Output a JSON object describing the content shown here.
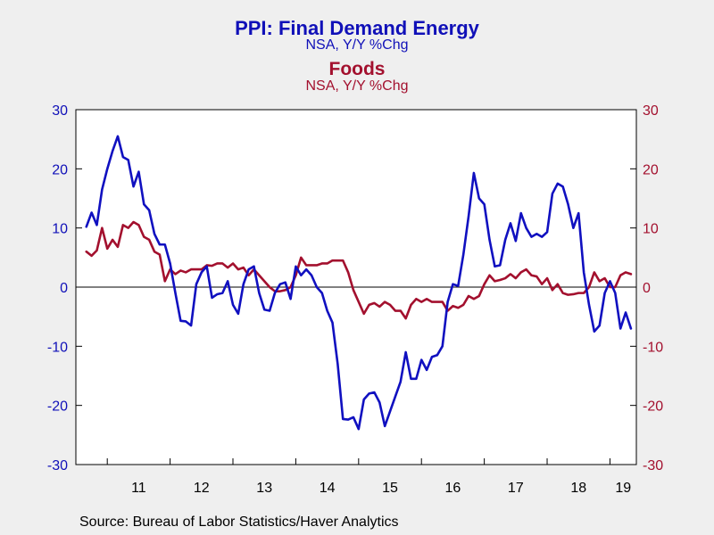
{
  "chart_data": {
    "type": "line",
    "title": "PPI: Final Demand Energy",
    "subtitle": "NSA, Y/Y %Chg",
    "title2": "Foods",
    "subtitle2": "NSA, Y/Y %Chg",
    "source": "Source:  Bureau of Labor Statistics/Haver Analytics",
    "ylim": [
      -30,
      30
    ],
    "yticks": [
      -30,
      -20,
      -10,
      0,
      10,
      20,
      30
    ],
    "left_tick_labels": [
      "30",
      "20",
      "10",
      "0",
      "-10",
      "-20",
      "-30"
    ],
    "right_tick_labels": [
      "30",
      "20",
      "10",
      "0",
      "-10",
      "-20",
      "-30"
    ],
    "x_labels": [
      "11",
      "12",
      "13",
      "14",
      "15",
      "16",
      "17",
      "18",
      "19"
    ],
    "xlim": [
      2010.5,
      2019.42
    ],
    "grid": false,
    "zero_line": true,
    "colors": {
      "energy": "#1010c0",
      "foods": "#a3102e",
      "left_axis_text": "#1010b8",
      "right_axis_text": "#a3102e"
    },
    "series": [
      {
        "name": "PPI: Final Demand Energy",
        "axis": "left",
        "start": 2010.667,
        "x_step_months": 1,
        "values": [
          10.2,
          12.6,
          10.5,
          16.5,
          20.0,
          23.0,
          25.5,
          22.0,
          21.5,
          17.0,
          19.5,
          14.0,
          13.0,
          9.0,
          7.2,
          7.2,
          4.0,
          -1.0,
          -5.7,
          -5.8,
          -6.5,
          0.5,
          2.5,
          3.5,
          -1.8,
          -1.2,
          -1.0,
          1.0,
          -3.0,
          -4.5,
          0.5,
          3.0,
          3.5,
          -1.0,
          -3.8,
          -4.0,
          -1.0,
          0.5,
          0.8,
          -2.0,
          3.5,
          2.0,
          3.0,
          2.0,
          0.0,
          -1.0,
          -4.0,
          -6.0,
          -13.0,
          -22.3,
          -22.4,
          -22.0,
          -24.0,
          -19.0,
          -18.0,
          -17.8,
          -19.5,
          -23.5,
          -21.0,
          -18.5,
          -16.0,
          -11.0,
          -15.5,
          -15.5,
          -12.3,
          -14.0,
          -11.8,
          -11.5,
          -10.0,
          -2.5,
          0.5,
          0.2,
          5.5,
          12.0,
          19.3,
          15.0,
          14.0,
          8.0,
          3.5,
          3.7,
          8.0,
          10.8,
          7.8,
          12.5,
          10.0,
          8.5,
          9.0,
          8.5,
          9.3,
          15.8,
          17.5,
          17.0,
          14.0,
          10.0,
          12.5,
          2.5,
          -3.0,
          -7.5,
          -6.5,
          -1.0,
          1.0,
          -1.0,
          -7.0,
          -4.3,
          -7.0
        ]
      },
      {
        "name": "Foods",
        "axis": "right",
        "start": 2010.667,
        "x_step_months": 1,
        "values": [
          6.0,
          5.3,
          6.2,
          10.0,
          6.5,
          8.0,
          6.8,
          10.5,
          10.0,
          11.0,
          10.5,
          8.5,
          8.0,
          6.0,
          5.5,
          1.0,
          3.0,
          2.2,
          2.8,
          2.5,
          3.0,
          3.0,
          3.0,
          3.7,
          3.6,
          4.0,
          4.0,
          3.3,
          4.0,
          3.0,
          3.3,
          2.0,
          3.0,
          2.0,
          1.0,
          0.0,
          -0.7,
          -0.7,
          -0.5,
          0.0,
          2.0,
          5.0,
          3.7,
          3.7,
          3.7,
          4.0,
          4.0,
          4.5,
          4.5,
          4.5,
          2.5,
          -0.5,
          -2.5,
          -4.5,
          -3.0,
          -2.7,
          -3.3,
          -2.5,
          -3.0,
          -4.0,
          -4.0,
          -5.3,
          -3.0,
          -2.0,
          -2.5,
          -2.0,
          -2.5,
          -2.5,
          -2.5,
          -4.0,
          -3.2,
          -3.5,
          -3.0,
          -1.5,
          -2.0,
          -1.5,
          0.5,
          2.0,
          1.0,
          1.2,
          1.5,
          2.2,
          1.5,
          2.5,
          3.0,
          2.0,
          1.8,
          0.5,
          1.5,
          -0.5,
          0.5,
          -1.0,
          -1.3,
          -1.2,
          -1.0,
          -1.0,
          0.0,
          2.5,
          1.0,
          1.5,
          0.0,
          0.0,
          2.0,
          2.5,
          2.2
        ]
      }
    ]
  }
}
